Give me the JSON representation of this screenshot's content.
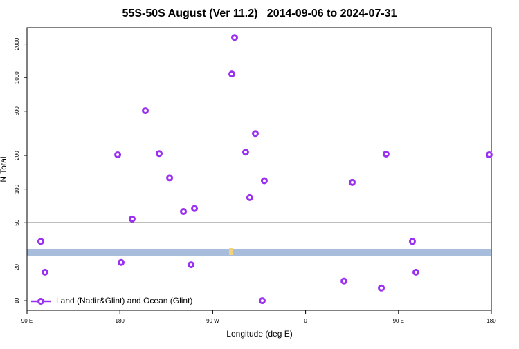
{
  "chart_data": {
    "type": "scatter",
    "title": "55S-50S August (Ver 11.2)   2014-09-06 to 2024-07-31",
    "x_label": "Longitude (deg E)",
    "y_label": "N Total",
    "log_y": true,
    "legend": "bottom-left",
    "hline": 50,
    "xlim": [
      90,
      540
    ],
    "ylim": [
      8.2,
      2800
    ],
    "xticks": [
      {
        "value": 90,
        "label": "90 E"
      },
      180,
      {
        "value": 270,
        "label": "90 W"
      },
      {
        "value": 360,
        "label": "0"
      },
      {
        "value": 450,
        "label": "90 E"
      },
      {
        "value": 540,
        "label": "180"
      }
    ],
    "yticks": [
      10,
      20,
      50,
      100,
      200,
      500,
      1000,
      2000
    ],
    "series": [
      {
        "name": "Land (Nadir&Glint) and Ocean (Glint)",
        "color": "#9b30f0",
        "x": [
          103.4,
          107.4,
          177.9,
          181.2,
          191.9,
          204.7,
          218.1,
          228.2,
          241.6,
          249,
          252.3,
          288.5,
          291.2,
          301.9,
          305.9,
          311.3,
          318,
          320,
          397.2,
          405.2,
          433.4,
          438,
          463.5,
          466.9,
          537.9
        ],
        "values": [
          34,
          18,
          203,
          22,
          54,
          505,
          208,
          126,
          63,
          21,
          67,
          1075,
          2285,
          214,
          84,
          315,
          10,
          119,
          15,
          115,
          13,
          206,
          34,
          18,
          203
        ]
      }
    ]
  }
}
